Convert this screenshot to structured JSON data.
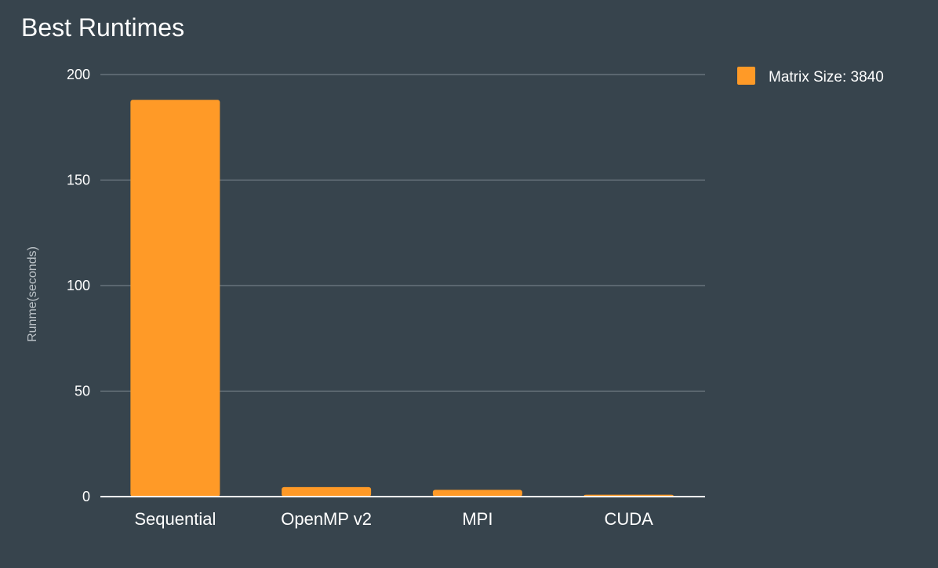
{
  "chart_data": {
    "type": "bar",
    "title": "Best Runtimes",
    "xlabel": "",
    "ylabel": "Runme(seconds)",
    "categories": [
      "Sequential",
      "OpenMP v2",
      "MPI",
      "CUDA"
    ],
    "series": [
      {
        "name": "Matrix Size: 3840",
        "values": [
          188,
          4.5,
          3.2,
          0.9
        ]
      }
    ],
    "ylim": [
      0,
      200
    ],
    "yticks": [
      0,
      50,
      100,
      150,
      200
    ],
    "grid": true,
    "legend_position": "top-right",
    "colors": {
      "background": "#37444d",
      "bar": "#ff9a27",
      "grid": "#7f8a92",
      "text": "#ffffff",
      "axis_title": "#b9c0c5"
    }
  }
}
